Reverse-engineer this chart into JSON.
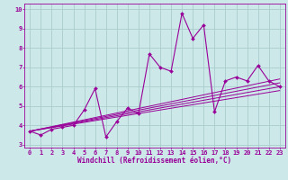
{
  "series": [
    {
      "x": [
        0,
        1,
        2,
        3,
        4,
        5,
        6,
        7,
        8,
        9,
        10,
        11,
        12,
        13,
        14,
        15,
        16,
        17,
        18,
        19,
        20,
        21,
        22,
        23
      ],
      "y": [
        3.7,
        3.5,
        3.8,
        3.9,
        4.0,
        4.8,
        5.9,
        3.4,
        4.2,
        4.9,
        4.6,
        7.7,
        7.0,
        6.8,
        9.8,
        8.5,
        9.2,
        4.7,
        6.3,
        6.5,
        6.3,
        7.1,
        6.3,
        6.0
      ]
    },
    {
      "x": [
        0,
        23
      ],
      "y": [
        3.7,
        5.8
      ]
    },
    {
      "x": [
        0,
        23
      ],
      "y": [
        3.7,
        6.0
      ]
    },
    {
      "x": [
        0,
        23
      ],
      "y": [
        3.7,
        6.2
      ]
    },
    {
      "x": [
        0,
        23
      ],
      "y": [
        3.7,
        6.4
      ]
    }
  ],
  "line_color": "#990099",
  "bg_color": "#cce8e8",
  "grid_color": "#aacccc",
  "xlabel": "Windchill (Refroidissement éolien,°C)",
  "xlim": [
    -0.5,
    23.5
  ],
  "ylim": [
    2.85,
    10.3
  ],
  "yticks": [
    3,
    4,
    5,
    6,
    7,
    8,
    9,
    10
  ],
  "xticks": [
    0,
    1,
    2,
    3,
    4,
    5,
    6,
    7,
    8,
    9,
    10,
    11,
    12,
    13,
    14,
    15,
    16,
    17,
    18,
    19,
    20,
    21,
    22,
    23
  ],
  "xlabel_fontsize": 5.5,
  "tick_fontsize": 5.0
}
